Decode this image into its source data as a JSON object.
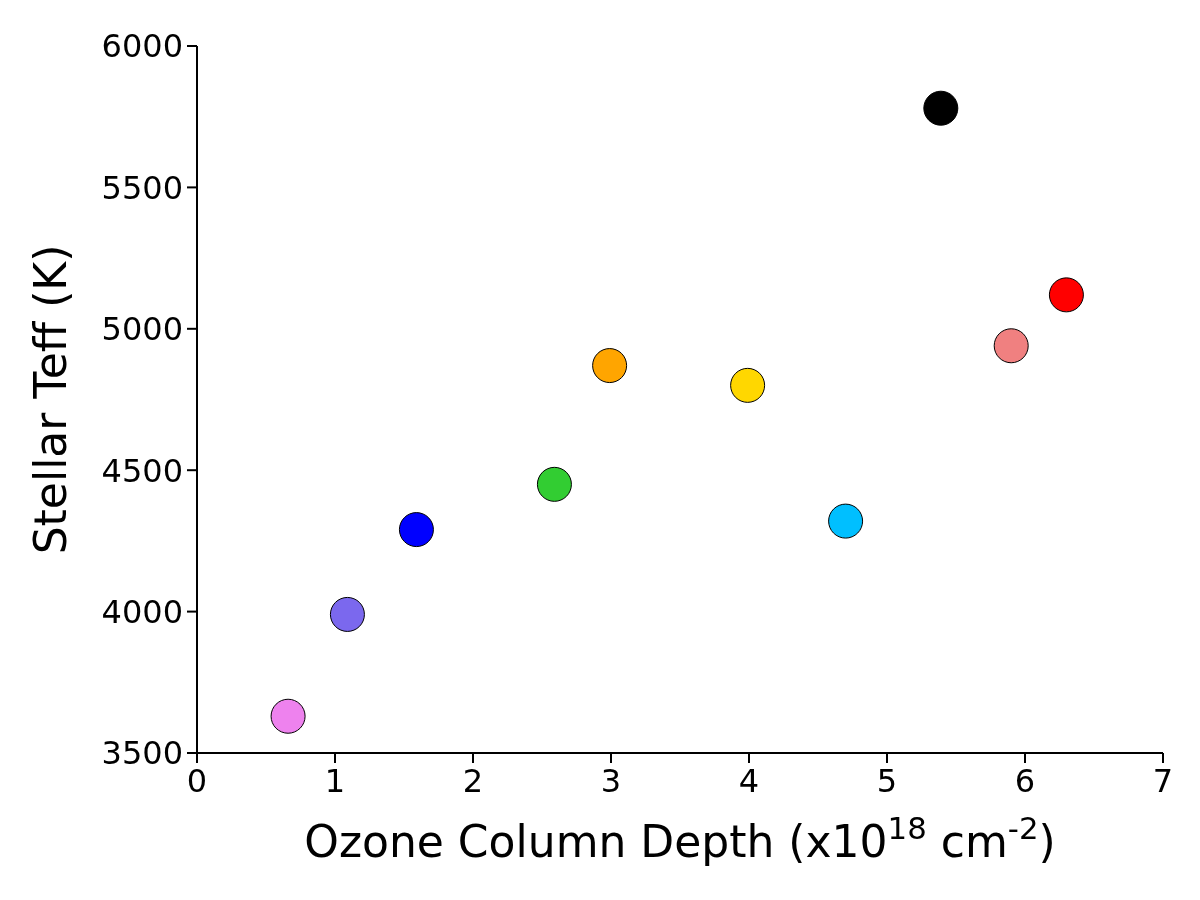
{
  "chart_data": {
    "type": "scatter",
    "xlabel": "Ozone Column Depth (x10$^{18}$ cm$^{-2}$)",
    "ylabel": "Stellar Teff (K)",
    "x": [
      0.66,
      1.09,
      1.59,
      2.59,
      2.99,
      3.99,
      4.7,
      5.39,
      5.9,
      6.3
    ],
    "values": [
      3630,
      3990,
      4290,
      4450,
      4870,
      4800,
      4320,
      5780,
      4940,
      5120
    ],
    "colors": [
      "#ee82ee",
      "#7b68ee",
      "#0000ff",
      "#32cd32",
      "#ffa500",
      "#ffd700",
      "#00bfff",
      "#000000",
      "#f08080",
      "#ff0000"
    ],
    "marker": "circle",
    "xlim": [
      0,
      7
    ],
    "xticks": [
      0,
      1,
      2,
      3,
      4,
      5,
      6,
      7
    ],
    "ylim": [
      3500,
      6000
    ],
    "yticks": [
      3500,
      4000,
      4500,
      5000,
      5500,
      6000
    ],
    "grid": false,
    "legend": false
  }
}
